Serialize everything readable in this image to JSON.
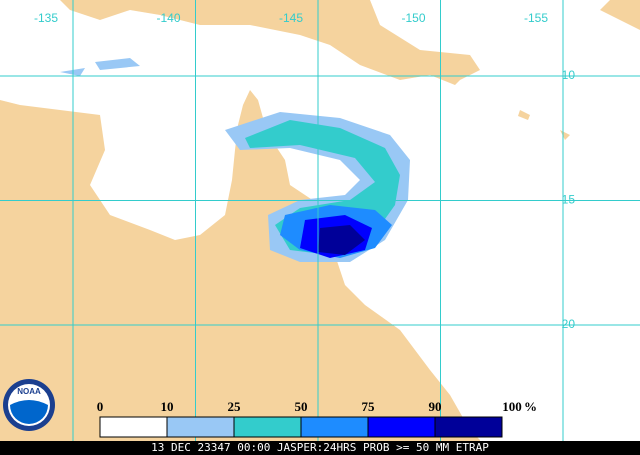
{
  "map": {
    "lon_labels": [
      -135,
      -140,
      -145,
      -150,
      -155
    ],
    "lat_labels": [
      -10,
      -15,
      -20
    ],
    "land_color": "#f5d39e",
    "grid_color": "#33cccc"
  },
  "legend": {
    "ticks": [
      0,
      10,
      25,
      50,
      75,
      90,
      100
    ],
    "unit": "%",
    "colors": [
      "#ffffff",
      "#99c8f5",
      "#33cccc",
      "#1e8cff",
      "#0000ff",
      "#000099"
    ]
  },
  "logo": "NOAA",
  "footer": "13 DEC 23347 00:00 JASPER:24HRS PROB >= 50 MM ETRAP"
}
